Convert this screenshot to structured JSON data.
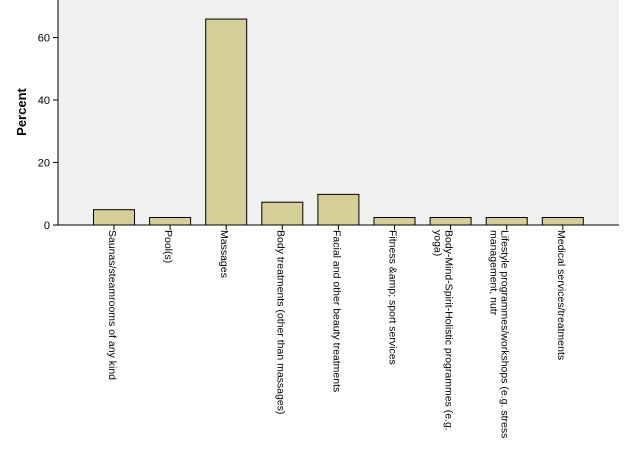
{
  "chart_data": {
    "type": "bar",
    "ylabel": "Percent",
    "xlabel": "",
    "ylim": [
      0,
      72
    ],
    "yticks": [
      0,
      20,
      40,
      60
    ],
    "grid": false,
    "colors": {
      "plot_background": "#f0f0f0",
      "bar_fill": "#d4cf98",
      "bar_stroke": "#000000"
    },
    "categories": [
      [
        "Saunas/steamrooms of any kind"
      ],
      [
        "Pool(s)"
      ],
      [
        "Massages"
      ],
      [
        "Body treatments (other than massages)"
      ],
      [
        "Facial and other beauty treatments"
      ],
      [
        "Fitness &amp; sport services"
      ],
      [
        "Body-Mind-Spirit-Holistic programmes (e.g.",
        "yoga)"
      ],
      [
        "Lifestyle programmes/workshops (e.g. stress",
        "management, nutr"
      ],
      [
        "Medical services/treatments"
      ]
    ],
    "values": [
      4.9,
      2.4,
      65.9,
      7.3,
      9.8,
      2.4,
      2.4,
      2.4,
      2.4
    ]
  }
}
